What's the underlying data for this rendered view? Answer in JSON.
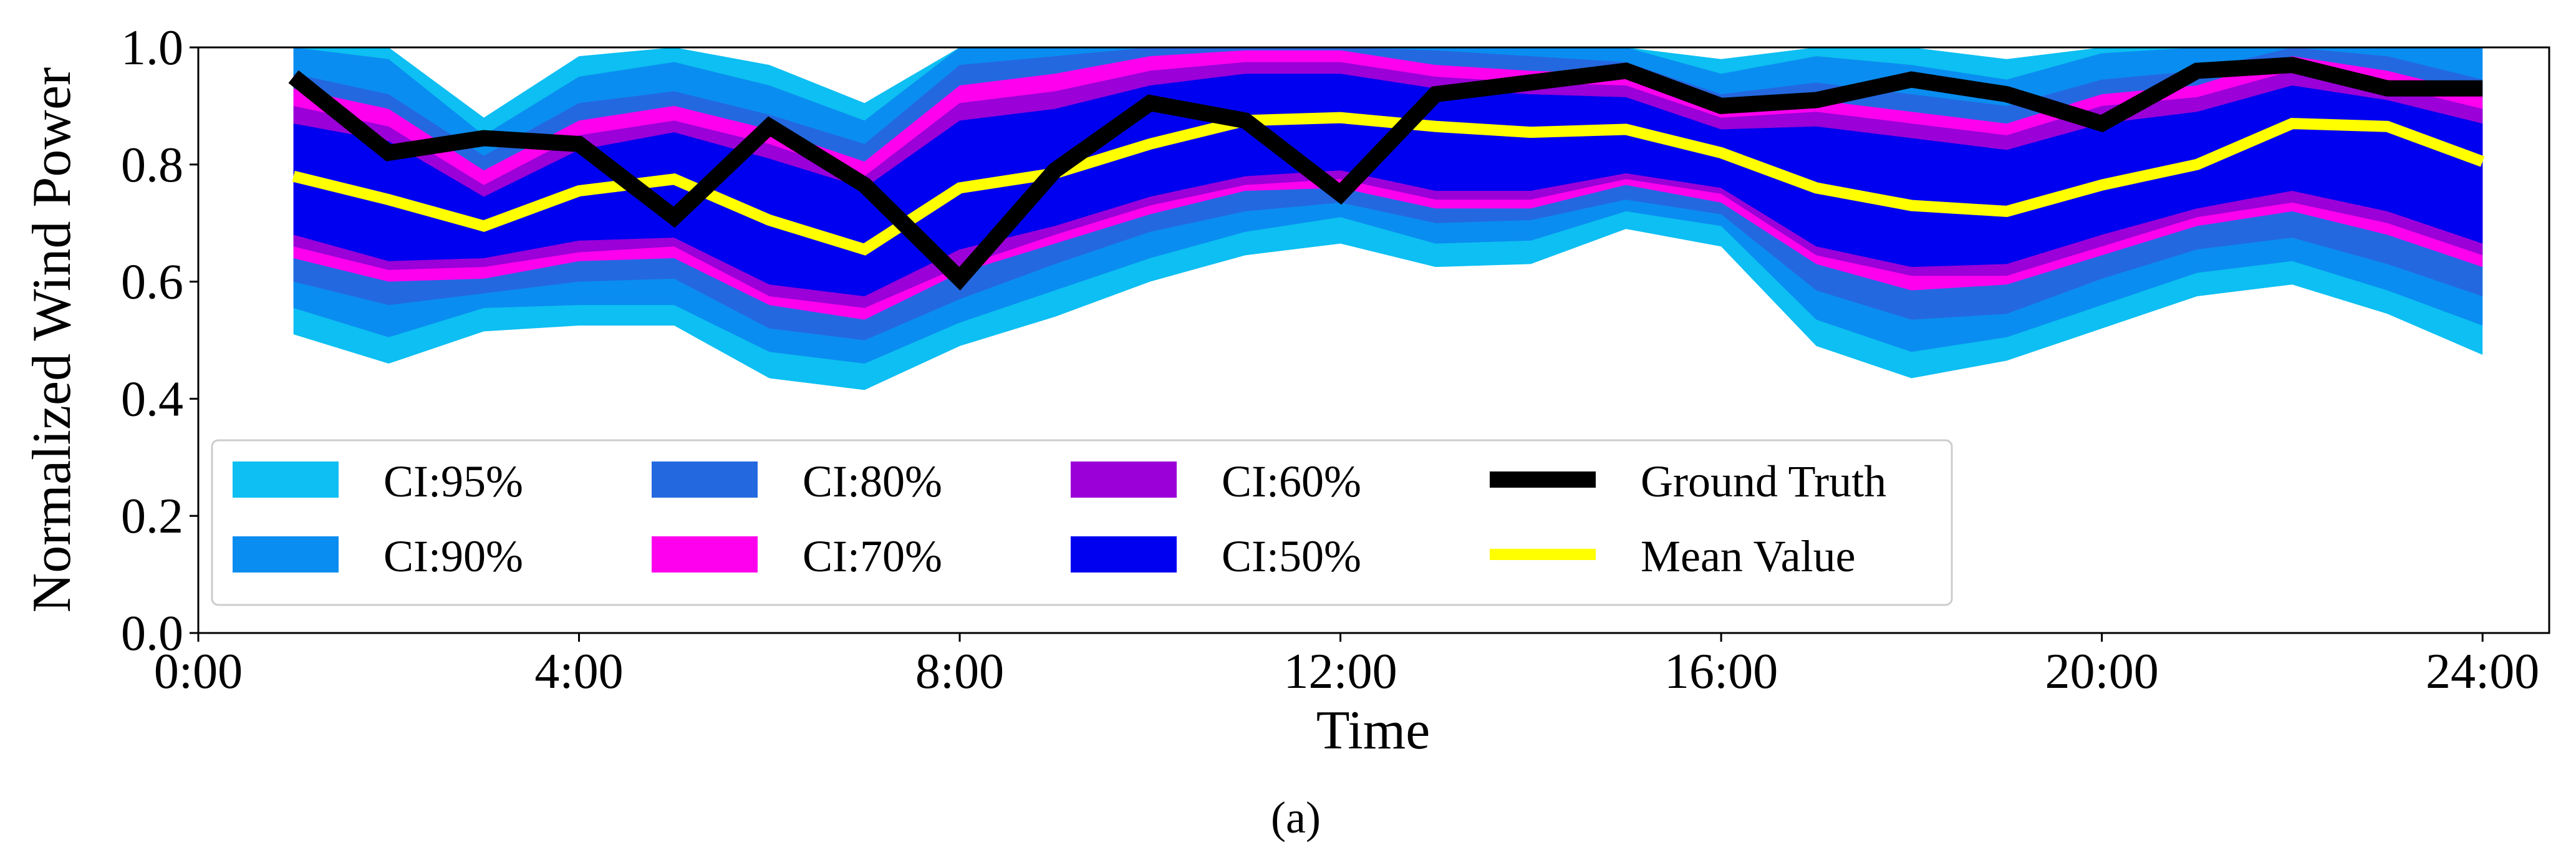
{
  "chart_data": {
    "type": "area",
    "title": "",
    "xlabel": "Time",
    "ylabel": "Normalized Wind Power",
    "caption": "(a)",
    "xlim": [
      0,
      24.7
    ],
    "ylim": [
      0,
      1
    ],
    "x_ticks": [
      {
        "value": 0,
        "label": "0:00"
      },
      {
        "value": 4,
        "label": "4:00"
      },
      {
        "value": 8,
        "label": "8:00"
      },
      {
        "value": 12,
        "label": "12:00"
      },
      {
        "value": 16,
        "label": "16:00"
      },
      {
        "value": 20,
        "label": "20:00"
      },
      {
        "value": 24,
        "label": "24:00"
      }
    ],
    "y_ticks": [
      {
        "value": 0.0,
        "label": "0.0"
      },
      {
        "value": 0.2,
        "label": "0.2"
      },
      {
        "value": 0.4,
        "label": "0.4"
      },
      {
        "value": 0.6,
        "label": "0.6"
      },
      {
        "value": 0.8,
        "label": "0.8"
      },
      {
        "value": 1.0,
        "label": "1.0"
      }
    ],
    "x": [
      1,
      2,
      3,
      4,
      5,
      6,
      7,
      8,
      9,
      10,
      11,
      12,
      13,
      14,
      15,
      16,
      17,
      18,
      19,
      20,
      21,
      22,
      23,
      24
    ],
    "ground_truth": [
      0.95,
      0.82,
      0.845,
      0.835,
      0.71,
      0.865,
      0.765,
      0.605,
      0.79,
      0.905,
      0.875,
      0.75,
      0.92,
      0.94,
      0.96,
      0.9,
      0.91,
      0.945,
      0.92,
      0.87,
      0.96,
      0.97,
      0.93,
      0.93
    ],
    "mean": [
      0.78,
      0.74,
      0.695,
      0.755,
      0.775,
      0.705,
      0.655,
      0.76,
      0.785,
      0.835,
      0.875,
      0.88,
      0.865,
      0.855,
      0.86,
      0.82,
      0.76,
      0.73,
      0.72,
      0.765,
      0.8,
      0.87,
      0.865,
      0.805
    ],
    "intervals": [
      {
        "name": "CI:95%",
        "color": "#0dbff2",
        "lower": [
          0.51,
          0.46,
          0.515,
          0.525,
          0.525,
          0.435,
          0.415,
          0.49,
          0.54,
          0.6,
          0.645,
          0.665,
          0.625,
          0.63,
          0.69,
          0.66,
          0.49,
          0.435,
          0.465,
          0.52,
          0.575,
          0.595,
          0.545,
          0.475
        ],
        "upper": [
          1.0,
          1.0,
          0.88,
          0.985,
          1.0,
          0.97,
          0.905,
          1.0,
          1.0,
          1.0,
          1.0,
          1.0,
          1.0,
          1.0,
          1.0,
          0.98,
          1.0,
          1.0,
          0.98,
          1.0,
          1.0,
          1.0,
          1.0,
          1.0
        ]
      },
      {
        "name": "CI:90%",
        "color": "#0a8df0",
        "lower": [
          0.555,
          0.505,
          0.555,
          0.56,
          0.56,
          0.48,
          0.46,
          0.53,
          0.585,
          0.64,
          0.685,
          0.71,
          0.665,
          0.67,
          0.72,
          0.695,
          0.535,
          0.48,
          0.505,
          0.56,
          0.615,
          0.635,
          0.585,
          0.525
        ],
        "upper": [
          1.0,
          0.98,
          0.85,
          0.95,
          0.975,
          0.935,
          0.875,
          1.0,
          1.0,
          1.0,
          1.0,
          1.0,
          1.0,
          1.0,
          1.0,
          0.955,
          0.985,
          0.97,
          0.945,
          0.99,
          1.0,
          1.0,
          1.0,
          1.0
        ]
      },
      {
        "name": "CI:80%",
        "color": "#2468e0",
        "lower": [
          0.6,
          0.56,
          0.58,
          0.6,
          0.605,
          0.52,
          0.5,
          0.57,
          0.63,
          0.685,
          0.72,
          0.735,
          0.7,
          0.705,
          0.74,
          0.715,
          0.585,
          0.535,
          0.545,
          0.605,
          0.655,
          0.675,
          0.63,
          0.575
        ],
        "upper": [
          0.955,
          0.92,
          0.815,
          0.905,
          0.925,
          0.885,
          0.835,
          0.97,
          0.985,
          1.0,
          1.0,
          1.0,
          0.995,
          0.985,
          0.975,
          0.92,
          0.94,
          0.92,
          0.9,
          0.945,
          0.96,
          1.0,
          0.985,
          0.945
        ]
      },
      {
        "name": "CI:70%",
        "color": "#ff00ee",
        "lower": [
          0.64,
          0.6,
          0.605,
          0.635,
          0.64,
          0.56,
          0.535,
          0.615,
          0.665,
          0.715,
          0.755,
          0.76,
          0.725,
          0.725,
          0.765,
          0.735,
          0.63,
          0.585,
          0.595,
          0.645,
          0.695,
          0.72,
          0.68,
          0.625
        ],
        "upper": [
          0.93,
          0.895,
          0.79,
          0.875,
          0.9,
          0.86,
          0.805,
          0.935,
          0.955,
          0.985,
          0.995,
          0.995,
          0.97,
          0.96,
          0.955,
          0.9,
          0.91,
          0.89,
          0.87,
          0.92,
          0.935,
          0.985,
          0.96,
          0.92
        ]
      },
      {
        "name": "CI:60%",
        "color": "#9b00d8",
        "lower": [
          0.66,
          0.62,
          0.625,
          0.65,
          0.66,
          0.575,
          0.555,
          0.625,
          0.68,
          0.73,
          0.765,
          0.775,
          0.74,
          0.74,
          0.775,
          0.75,
          0.645,
          0.61,
          0.61,
          0.66,
          0.71,
          0.735,
          0.7,
          0.645
        ],
        "upper": [
          0.9,
          0.865,
          0.765,
          0.85,
          0.875,
          0.835,
          0.78,
          0.905,
          0.925,
          0.96,
          0.975,
          0.975,
          0.95,
          0.94,
          0.935,
          0.88,
          0.89,
          0.87,
          0.85,
          0.9,
          0.915,
          0.96,
          0.935,
          0.895
        ]
      },
      {
        "name": "CI:50%",
        "color": "#0000f0",
        "lower": [
          0.68,
          0.635,
          0.64,
          0.67,
          0.675,
          0.595,
          0.575,
          0.655,
          0.695,
          0.745,
          0.78,
          0.79,
          0.755,
          0.755,
          0.785,
          0.76,
          0.66,
          0.625,
          0.63,
          0.68,
          0.725,
          0.755,
          0.72,
          0.665
        ],
        "upper": [
          0.87,
          0.84,
          0.745,
          0.825,
          0.855,
          0.81,
          0.76,
          0.875,
          0.895,
          0.935,
          0.955,
          0.955,
          0.93,
          0.92,
          0.915,
          0.86,
          0.865,
          0.845,
          0.825,
          0.87,
          0.89,
          0.935,
          0.91,
          0.87
        ]
      }
    ],
    "lines": [
      {
        "name": "Ground Truth",
        "color": "#000000",
        "key": "ground_truth"
      },
      {
        "name": "Mean Value",
        "color": "#ffff00",
        "key": "mean"
      }
    ],
    "legend": {
      "position": "lower-left",
      "columns": [
        [
          "CI:95%",
          "CI:90%"
        ],
        [
          "CI:80%",
          "CI:70%"
        ],
        [
          "CI:60%",
          "CI:50%"
        ],
        [
          "Ground Truth",
          "Mean Value"
        ]
      ]
    }
  }
}
